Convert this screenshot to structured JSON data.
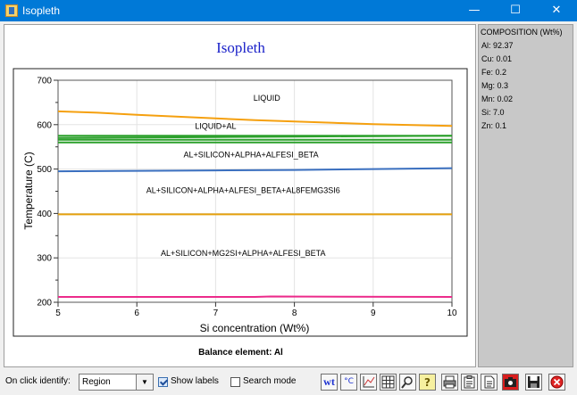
{
  "window": {
    "title": "Isopleth",
    "minimize_label": "—",
    "maximize_label": "☐",
    "close_label": "✕"
  },
  "chart_data": {
    "type": "line",
    "title": "Isopleth",
    "xlabel": "Si concentration (Wt%)",
    "ylabel": "Temperature (C)",
    "xlim": [
      5,
      10
    ],
    "ylim": [
      200,
      700
    ],
    "xticks": [
      5,
      6,
      7,
      8,
      9,
      10
    ],
    "yticks": [
      200,
      300,
      400,
      500,
      600,
      700
    ],
    "grid": true,
    "series": [
      {
        "color": "#f5a00f",
        "x": [
          5,
          5.5,
          6,
          6.5,
          7,
          7.5,
          8,
          8.5,
          9,
          9.5,
          10
        ],
        "y": [
          630,
          627,
          622,
          618,
          614,
          610,
          607,
          604,
          601,
          599,
          597
        ]
      },
      {
        "color": "#2ca02c",
        "x": [
          5,
          6.5,
          7,
          8,
          10
        ],
        "y": [
          575,
          575,
          575,
          575,
          575
        ]
      },
      {
        "color": "#2ca02c",
        "x": [
          5,
          6,
          7,
          8,
          10
        ],
        "y": [
          570,
          571,
          572,
          573,
          575
        ]
      },
      {
        "color": "#2ca02c",
        "x": [
          5,
          7,
          10
        ],
        "y": [
          566,
          566,
          566
        ]
      },
      {
        "color": "#2ca02c",
        "x": [
          5,
          10
        ],
        "y": [
          560,
          560
        ]
      },
      {
        "color": "#3a6fbf",
        "x": [
          5,
          6,
          7,
          8,
          9,
          10
        ],
        "y": [
          495,
          496,
          497,
          498,
          500,
          502
        ]
      },
      {
        "color": "#e5a00d",
        "x": [
          5,
          10
        ],
        "y": [
          398,
          398
        ]
      },
      {
        "color": "#ec2b8b",
        "x": [
          5,
          7.5,
          7.7,
          10
        ],
        "y": [
          212,
          212,
          213,
          212
        ]
      }
    ],
    "annotations": [
      {
        "text": "LIQUID",
        "x": 7.65,
        "y": 654
      },
      {
        "text": "LIQUID+AL",
        "x": 7.0,
        "y": 591
      },
      {
        "text": "AL+SILICON+ALPHA+ALFESI_BETA",
        "x": 7.45,
        "y": 526
      },
      {
        "text": "AL+SILICON+ALPHA+ALFESI_BETA+AL8FEMG3SI6",
        "x": 7.35,
        "y": 446
      },
      {
        "text": "AL+SILICON+MG2SI+ALPHA+ALFESI_BETA",
        "x": 7.35,
        "y": 304
      }
    ]
  },
  "balance_label": "Balance element: Al",
  "composition": {
    "title": "COMPOSITION (Wt%)",
    "items": [
      "Al: 92.37",
      "Cu: 0.01",
      "Fe: 0.2",
      "Mg: 0.3",
      "Mn: 0.02",
      "Si: 7.0",
      "Zn: 0.1"
    ]
  },
  "bottombar": {
    "identify_label": "On click identify:",
    "identify_value": "Region",
    "show_labels": "Show labels",
    "search_mode": "Search mode",
    "wt_label": "wt",
    "celsius_label": "°C"
  }
}
